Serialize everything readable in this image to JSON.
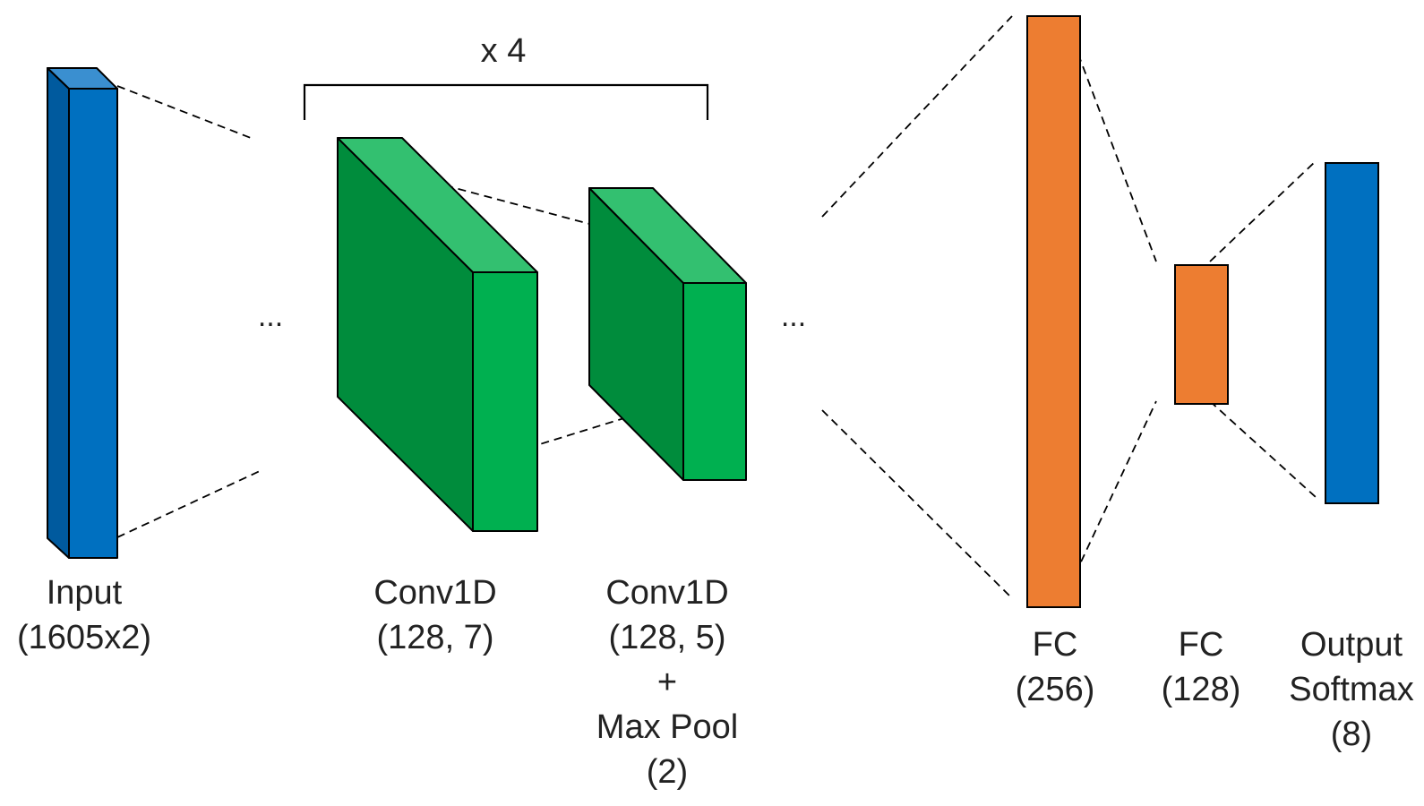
{
  "colors": {
    "input_front": "#0070c0",
    "input_side": "#005a9e",
    "input_top": "#3a8fd0",
    "conv_front": "#00b050",
    "conv_side": "#008c3c",
    "conv_top": "#33c070",
    "fc": "#ed7d31",
    "output": "#0070c0",
    "stroke": "#000000",
    "text": "#222222"
  },
  "repeat_label": "x 4",
  "ellipsis": "...",
  "layers": {
    "input": {
      "line1": "Input",
      "line2": "(1605x2)"
    },
    "conv1": {
      "line1": "Conv1D",
      "line2": "(128, 7)"
    },
    "conv2": {
      "line1": "Conv1D",
      "line2": "(128, 5)",
      "line3": "+",
      "line4": "Max Pool",
      "line5": "(2)"
    },
    "fc1": {
      "line1": "FC",
      "line2": "(256)"
    },
    "fc2": {
      "line1": "FC",
      "line2": "(128)"
    },
    "output": {
      "line1": "Output",
      "line2": "Softmax",
      "line3": "(8)"
    }
  }
}
